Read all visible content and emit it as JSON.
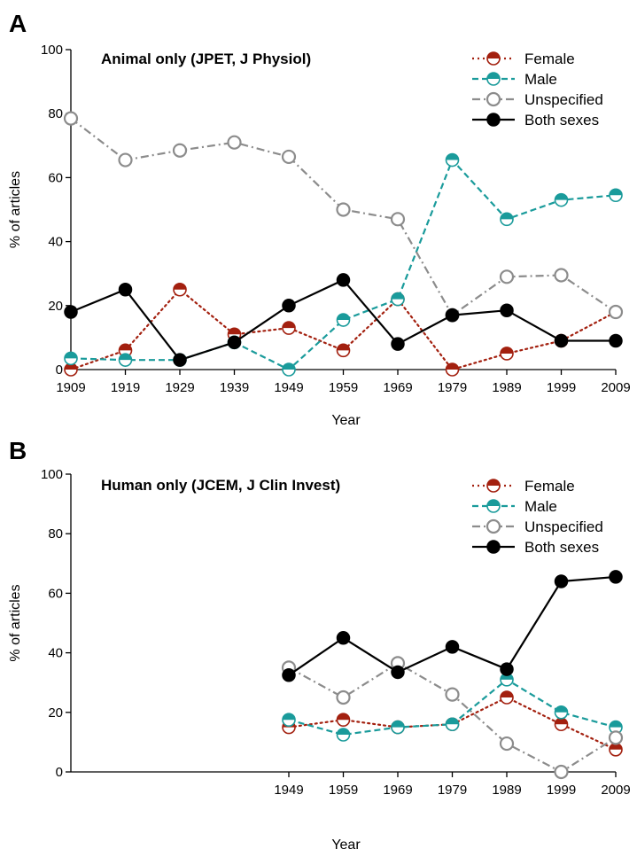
{
  "colors": {
    "female": "#a3200f",
    "male": "#1a9b9b",
    "unspecified": "#8c8c8c",
    "both": "#000000"
  },
  "chart_data": [
    {
      "panel": "A",
      "type": "line",
      "title": "Animal only (JPET, J Physiol)",
      "xlabel": "Year",
      "ylabel": "% of articles",
      "x": [
        1909,
        1919,
        1929,
        1939,
        1949,
        1959,
        1969,
        1979,
        1989,
        1999,
        2009
      ],
      "xlim": [
        1909,
        2009
      ],
      "ylim": [
        0,
        100
      ],
      "yticks": [
        0,
        20,
        40,
        60,
        80,
        100
      ],
      "legend_position": "top-right",
      "series": [
        {
          "key": "female",
          "name": "Female",
          "style": "dotted",
          "marker": "half-filled",
          "values": [
            0,
            6,
            25,
            11,
            13,
            6,
            22,
            0,
            5,
            9,
            18
          ]
        },
        {
          "key": "male",
          "name": "Male",
          "style": "dashed",
          "marker": "half-filled",
          "values": [
            3.5,
            3,
            3,
            8.5,
            0,
            15.5,
            22,
            65.5,
            47,
            53,
            54.5
          ]
        },
        {
          "key": "unspecified",
          "name": "Unspecified",
          "style": "dash-dot",
          "marker": "open",
          "values": [
            78.5,
            65.5,
            68.5,
            71,
            66.5,
            50,
            47,
            17,
            29,
            29.5,
            18
          ]
        },
        {
          "key": "both",
          "name": "Both sexes",
          "style": "solid",
          "marker": "filled",
          "values": [
            18,
            25,
            3,
            8.5,
            20,
            28,
            8,
            17,
            18.5,
            9,
            9
          ]
        }
      ]
    },
    {
      "panel": "B",
      "type": "line",
      "title": "Human only (JCEM, J Clin Invest)",
      "xlabel": "Year",
      "ylabel": "% of articles",
      "x": [
        1949,
        1959,
        1969,
        1979,
        1989,
        1999,
        2009
      ],
      "xlim": [
        1909,
        2009
      ],
      "ylim": [
        0,
        100
      ],
      "yticks": [
        0,
        20,
        40,
        60,
        80,
        100
      ],
      "legend_position": "top-right",
      "series": [
        {
          "key": "female",
          "name": "Female",
          "style": "dotted",
          "marker": "half-filled",
          "values": [
            15,
            17.5,
            15,
            16,
            25,
            16,
            7.5
          ]
        },
        {
          "key": "male",
          "name": "Male",
          "style": "dashed",
          "marker": "half-filled",
          "values": [
            17.5,
            12.5,
            15,
            16,
            31,
            20,
            15
          ]
        },
        {
          "key": "unspecified",
          "name": "Unspecified",
          "style": "dash-dot",
          "marker": "open",
          "values": [
            35,
            25,
            36.5,
            26,
            9.5,
            0,
            11.5
          ]
        },
        {
          "key": "both",
          "name": "Both sexes",
          "style": "solid",
          "marker": "filled",
          "values": [
            32.5,
            45,
            33.5,
            42,
            34.5,
            64,
            65.5
          ]
        }
      ]
    }
  ]
}
